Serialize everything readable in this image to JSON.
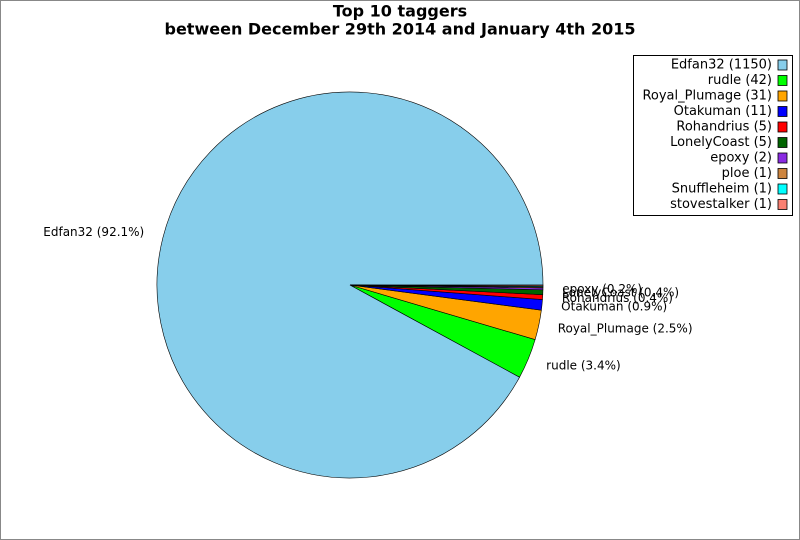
{
  "chart_data": {
    "type": "pie",
    "title": "Top 10 taggers",
    "subtitle": "between December 29th 2014 and January 4th 2015",
    "categories": [
      "Edfan32",
      "rudle",
      "Royal_Plumage",
      "Otakuman",
      "Rohandrius",
      "LonelyCoast",
      "epoxy",
      "ploe",
      "Snuffleheim",
      "stovestalker"
    ],
    "values": [
      1150,
      42,
      31,
      11,
      5,
      5,
      2,
      1,
      1,
      1
    ],
    "legend_labels": [
      "Edfan32 (1150)",
      "rudle (42)",
      "Royal_Plumage (31)",
      "Otakuman (11)",
      "Rohandrius (5)",
      "LonelyCoast (5)",
      "epoxy (2)",
      "ploe (1)",
      "Snuffleheim (1)",
      "stovestalker (1)"
    ],
    "value_labels": [
      "Edfan32 (92.1%)",
      "rudle (3.4%)",
      "Royal_Plumage (2.5%)",
      "Otakuman (0.9%)",
      "Rohandrius (0.4%)",
      "LonelyCoast (0.4%)",
      "epoxy (0.2%)",
      null,
      null,
      null
    ],
    "colors": [
      "#87ceeb",
      "#00ff00",
      "#ffa500",
      "#0000ff",
      "#ff0000",
      "#006400",
      "#8a2be2",
      "#cd853f",
      "#00ffff",
      "#fa8072"
    ],
    "legend": "upper right"
  }
}
